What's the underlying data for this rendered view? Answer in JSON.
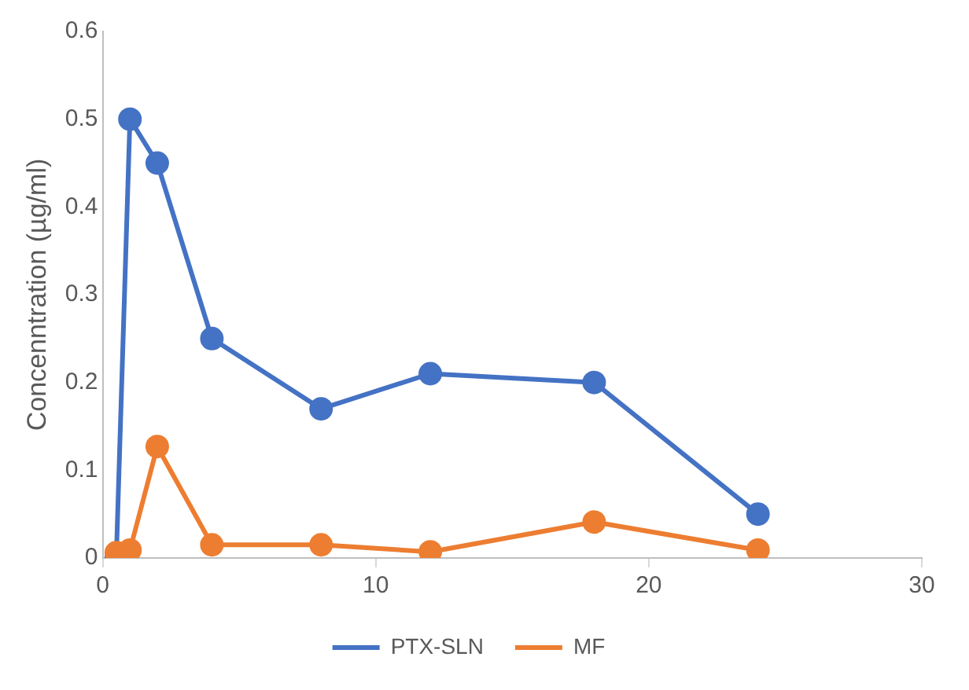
{
  "chart_data": {
    "type": "line",
    "ylabel": "Concenntration (µg/ml)",
    "x": [
      0.5,
      1,
      2,
      4,
      8,
      12,
      18,
      24
    ],
    "series": [
      {
        "name": "PTX-SLN",
        "color": "#4472c4",
        "values": [
          0,
          0.5,
          0.45,
          0.25,
          0.17,
          0.21,
          0.2,
          0.05
        ]
      },
      {
        "name": "MF",
        "color": "#ed7d31",
        "values": [
          0.006,
          0.009,
          0.127,
          0.015,
          0.015,
          0.007,
          0.041,
          0.009
        ]
      }
    ],
    "xlim": [
      0,
      30
    ],
    "xticks": [
      0,
      10,
      20,
      30
    ],
    "ylim": [
      0,
      0.6
    ],
    "yticks": [
      0,
      0.1,
      0.2,
      0.3,
      0.4,
      0.5,
      0.6
    ],
    "grid": false,
    "legend": "bottom",
    "marker": "circle",
    "line_style": "solid"
  }
}
